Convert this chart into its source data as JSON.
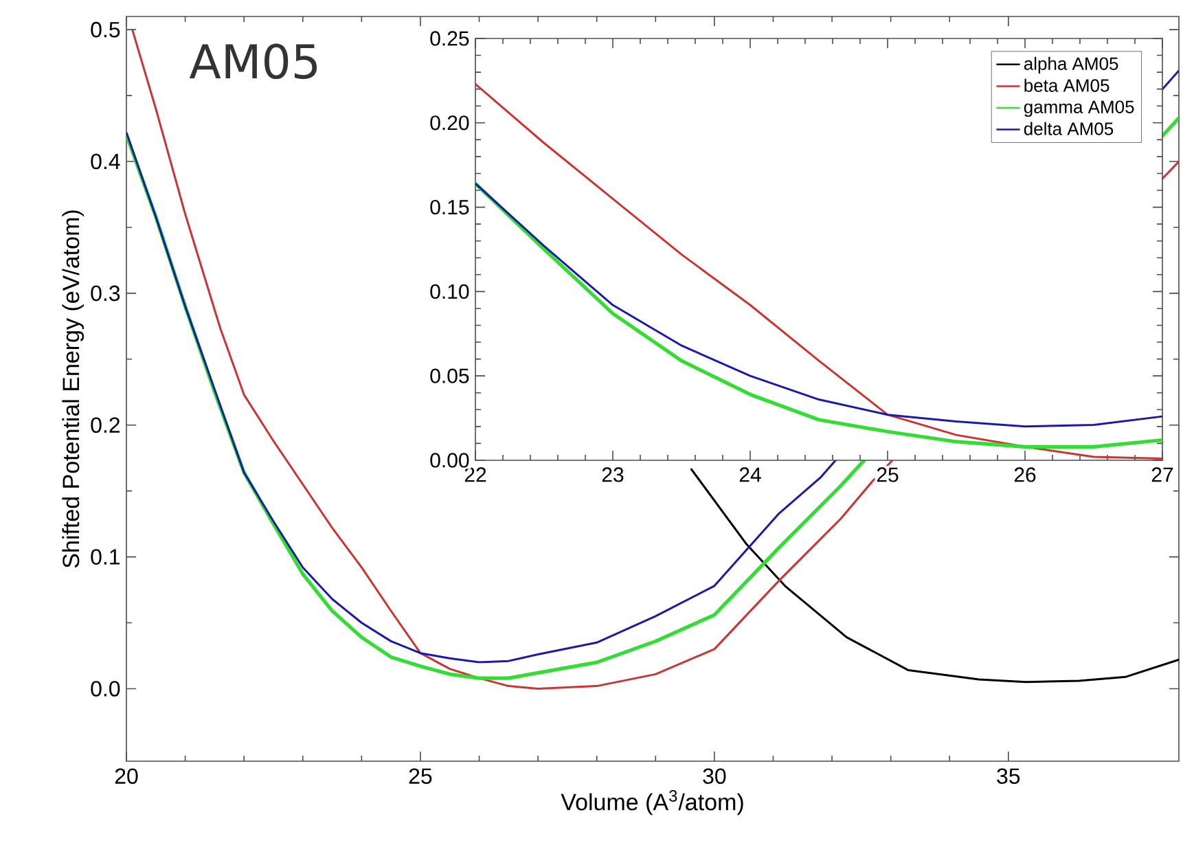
{
  "chart_data": [
    {
      "type": "line",
      "xlabel": "Volume (A$^{3}$/atom)",
      "ylabel": "Shifted Potential Energy (eV/atom)",
      "annotations": [
        "AM05"
      ],
      "xlim": [
        20,
        37.9
      ],
      "ylim": [
        -0.055,
        0.51
      ],
      "xticks": [
        20,
        25,
        30,
        35
      ],
      "yticks": [
        {
          "value": 0,
          "label": "0.0"
        },
        {
          "value": 0.1,
          "label": "0.1"
        },
        {
          "value": 0.2,
          "label": "0.2"
        },
        {
          "value": 0.3,
          "label": "0.3"
        },
        {
          "value": 0.4,
          "label": "0.4"
        },
        {
          "value": 0.5,
          "label": "0.5"
        }
      ],
      "series": [
        {
          "color": "#000000",
          "x": [
            29.6,
            30.54,
            31.2,
            32.25,
            33.3,
            34.5,
            35.3,
            36.2,
            37,
            37.9
          ],
          "values": [
            0.167,
            0.11,
            0.078,
            0.039,
            0.014,
            0.007,
            0.005,
            0.006,
            0.009,
            0.022
          ]
        },
        {
          "color": "#cc3333",
          "x": [
            20.1,
            20.5,
            21,
            21.6,
            22,
            22.5,
            23,
            23.5,
            24,
            24.5,
            25,
            25.5,
            26,
            26.5,
            27,
            28,
            29,
            30,
            31.1,
            32.15,
            32.7,
            37.9
          ],
          "values": [
            0.5,
            0.44,
            0.36,
            0.273,
            0.223,
            0.188,
            0.155,
            0.122,
            0.092,
            0.059,
            0.027,
            0.015,
            0.008,
            0.002,
            0.0,
            0.002,
            0.011,
            0.03,
            0.082,
            0.129,
            0.158,
            0.4
          ]
        },
        {
          "color": "#33dd33",
          "x": [
            20,
            20.5,
            21,
            21.5,
            22,
            22.5,
            23,
            23.5,
            24,
            24.5,
            25,
            25.5,
            26,
            26.5,
            27,
            28,
            29,
            30,
            31.1,
            32.15,
            37.9
          ],
          "values": [
            0.42,
            0.358,
            0.29,
            0.225,
            0.164,
            0.125,
            0.087,
            0.059,
            0.039,
            0.024,
            0.017,
            0.011,
            0.008,
            0.008,
            0.012,
            0.02,
            0.036,
            0.056,
            0.107,
            0.154,
            0.433
          ]
        },
        {
          "color": "#1a1aaa",
          "x": [
            20,
            20.5,
            21,
            21.5,
            22,
            22.5,
            23,
            23.5,
            24,
            24.5,
            25,
            25.5,
            26,
            26.5,
            27,
            28,
            29,
            30,
            31.1,
            31.8,
            37.9
          ],
          "values": [
            0.422,
            0.358,
            0.29,
            0.227,
            0.164,
            0.127,
            0.092,
            0.068,
            0.05,
            0.036,
            0.027,
            0.023,
            0.02,
            0.021,
            0.026,
            0.035,
            0.055,
            0.078,
            0.133,
            0.16,
            0.469
          ]
        }
      ]
    },
    {
      "type": "line",
      "legend": "top right",
      "xlim": [
        22,
        27
      ],
      "ylim": [
        0,
        0.25
      ],
      "xticks": [
        22,
        23,
        24,
        25,
        26,
        27
      ],
      "yticks": [
        {
          "value": 0,
          "label": "0.00"
        },
        {
          "value": 0.05,
          "label": "0.05"
        },
        {
          "value": 0.1,
          "label": "0.10"
        },
        {
          "value": 0.15,
          "label": "0.15"
        },
        {
          "value": 0.2,
          "label": "0.20"
        },
        {
          "value": 0.25,
          "label": "0.25"
        }
      ],
      "series": [
        {
          "name": "alpha AM05",
          "color": "#000000"
        },
        {
          "name": "beta AM05",
          "color": "#cc3333",
          "x": [
            22,
            22.5,
            23,
            23.5,
            24,
            24.5,
            25,
            25.5,
            26,
            26.5,
            27
          ],
          "values": [
            0.223,
            0.188,
            0.155,
            0.122,
            0.092,
            0.059,
            0.027,
            0.015,
            0.008,
            0.002,
            0.001
          ]
        },
        {
          "name": "gamma AM05",
          "color": "#33dd33",
          "x": [
            22,
            22.5,
            23,
            23.5,
            24,
            24.5,
            25,
            25.5,
            26,
            26.5,
            27
          ],
          "values": [
            0.164,
            0.125,
            0.087,
            0.059,
            0.039,
            0.024,
            0.017,
            0.011,
            0.008,
            0.008,
            0.012
          ]
        },
        {
          "name": "delta AM05",
          "color": "#1a1aaa",
          "x": [
            22,
            22.5,
            23,
            23.5,
            24,
            24.5,
            25,
            25.5,
            26,
            26.5,
            27
          ],
          "values": [
            0.164,
            0.127,
            0.092,
            0.068,
            0.05,
            0.036,
            0.027,
            0.023,
            0.02,
            0.021,
            0.026
          ]
        }
      ]
    }
  ]
}
